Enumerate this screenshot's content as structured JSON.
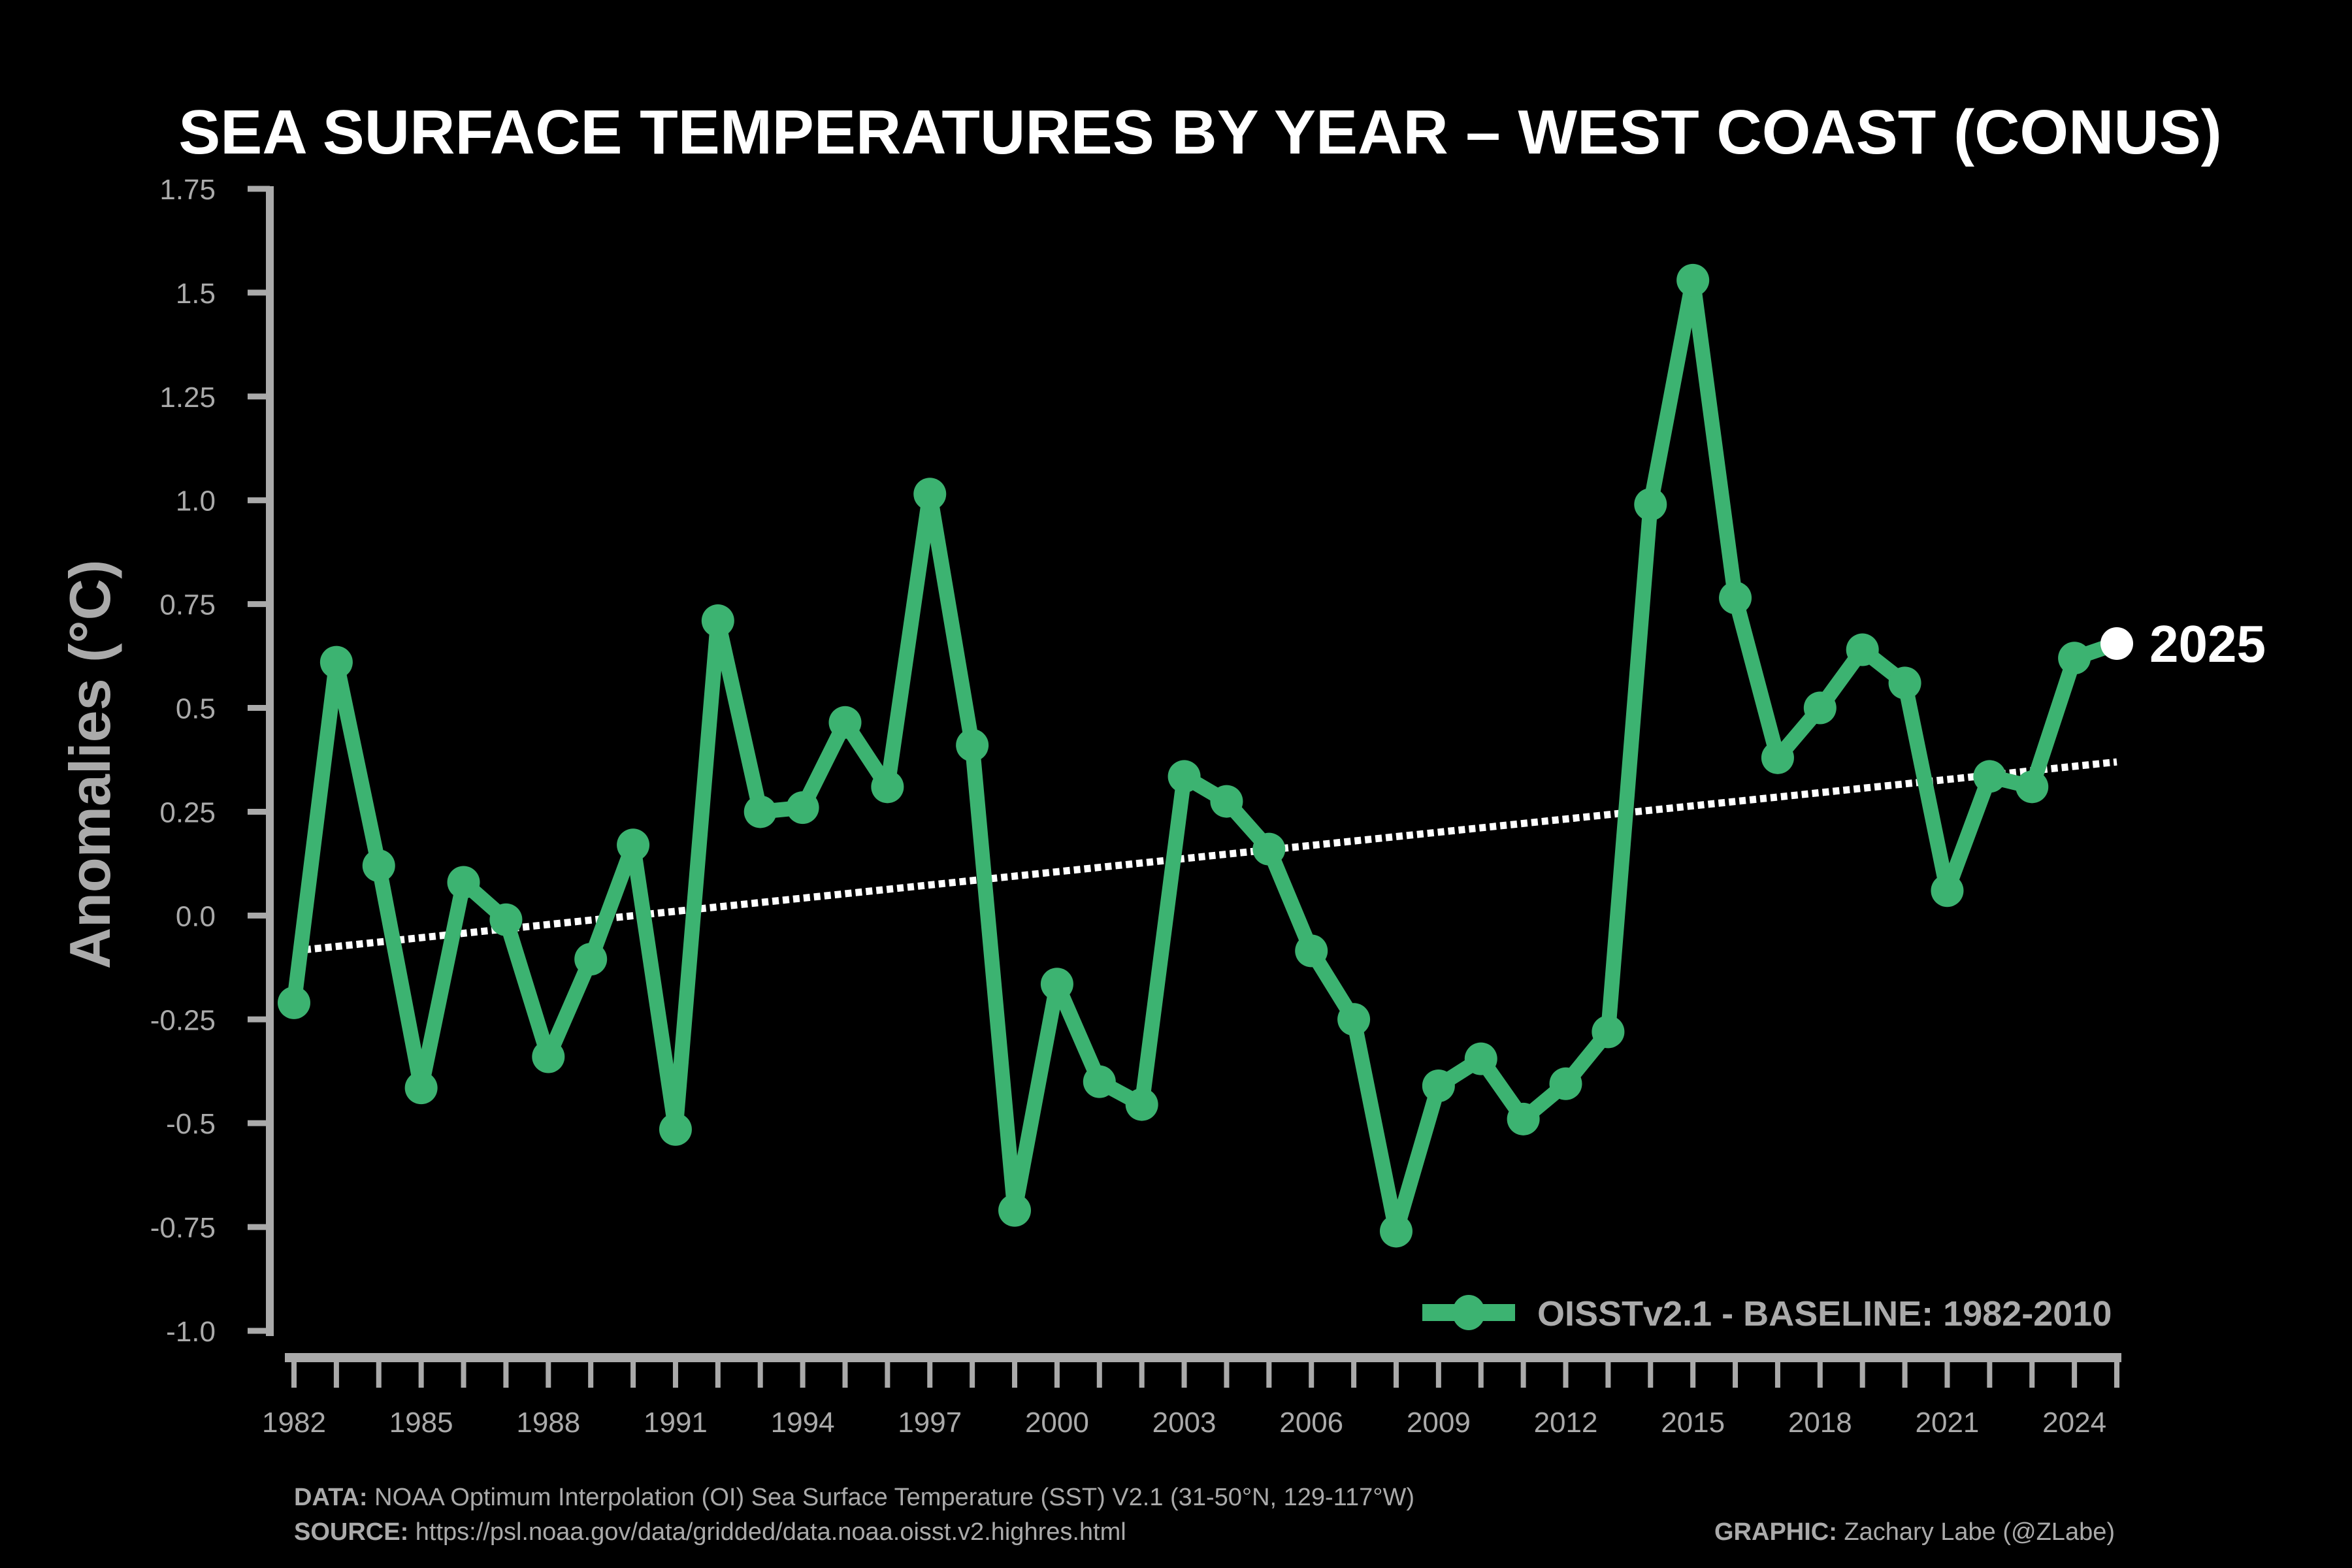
{
  "chart_data": {
    "type": "line",
    "title": "SEA SURFACE TEMPERATURES BY YEAR – WEST COAST (CONUS)",
    "ylabel": "Anomalies (°C)",
    "xlabel": "",
    "ylim": [
      -1.0,
      1.75
    ],
    "xlim": [
      1982,
      2025
    ],
    "yticks": [
      "1.75",
      "1.5",
      "1.25",
      "1.0",
      "0.75",
      "0.5",
      "0.25",
      "0.0",
      "-0.25",
      "-0.5",
      "-0.75",
      "-1.0"
    ],
    "ytick_values": [
      1.75,
      1.5,
      1.25,
      1.0,
      0.75,
      0.5,
      0.25,
      0.0,
      -0.25,
      -0.5,
      -0.75,
      -1.0
    ],
    "xticks": [
      "1982",
      "1985",
      "1988",
      "1991",
      "1994",
      "1997",
      "2000",
      "2003",
      "2006",
      "2009",
      "2012",
      "2015",
      "2018",
      "2021",
      "2024"
    ],
    "grid": false,
    "legend_position": "bottom-right",
    "series": [
      {
        "name": "OISSTv2.1 - BASELINE: 1982-2010",
        "color": "#3cb371",
        "x": [
          1982,
          1983,
          1984,
          1985,
          1986,
          1987,
          1988,
          1989,
          1990,
          1991,
          1992,
          1993,
          1994,
          1995,
          1996,
          1997,
          1998,
          1999,
          2000,
          2001,
          2002,
          2003,
          2004,
          2005,
          2006,
          2007,
          2008,
          2009,
          2010,
          2011,
          2012,
          2013,
          2014,
          2015,
          2016,
          2017,
          2018,
          2019,
          2020,
          2021,
          2022,
          2023,
          2024,
          2025
        ],
        "y": [
          -0.21,
          0.61,
          0.12,
          -0.415,
          0.08,
          -0.01,
          -0.34,
          -0.105,
          0.17,
          -0.515,
          0.71,
          0.25,
          0.26,
          0.465,
          0.31,
          1.015,
          0.41,
          -0.71,
          -0.165,
          -0.4,
          -0.455,
          0.335,
          0.275,
          0.16,
          -0.085,
          -0.25,
          -0.76,
          -0.41,
          -0.345,
          -0.49,
          -0.405,
          -0.28,
          0.99,
          1.53,
          0.765,
          0.38,
          0.5,
          0.64,
          0.56,
          0.06,
          0.335,
          0.31,
          0.62,
          0.655
        ]
      }
    ],
    "trend": {
      "color": "#ffffff",
      "style": "dotted",
      "x": [
        1982,
        2025
      ],
      "y": [
        -0.085,
        0.37
      ]
    },
    "highlight": {
      "label": "2025",
      "x": 2025,
      "y": 0.655,
      "color": "#ffffff"
    }
  },
  "footer": {
    "data_label": "DATA:",
    "data_text": " NOAA Optimum Interpolation (OI) Sea Surface Temperature (SST) V2.1 (31-50°N, 129-117°W)",
    "source_label": "SOURCE:",
    "source_text": " https://psl.noaa.gov/data/gridded/data.noaa.oisst.v2.highres.html",
    "graphic_label": "GRAPHIC:",
    "graphic_text": " Zachary Labe (@ZLabe)"
  },
  "colors": {
    "background": "#000000",
    "axis": "#aaaaaa",
    "series": "#3cb371",
    "trend": "#ffffff"
  }
}
